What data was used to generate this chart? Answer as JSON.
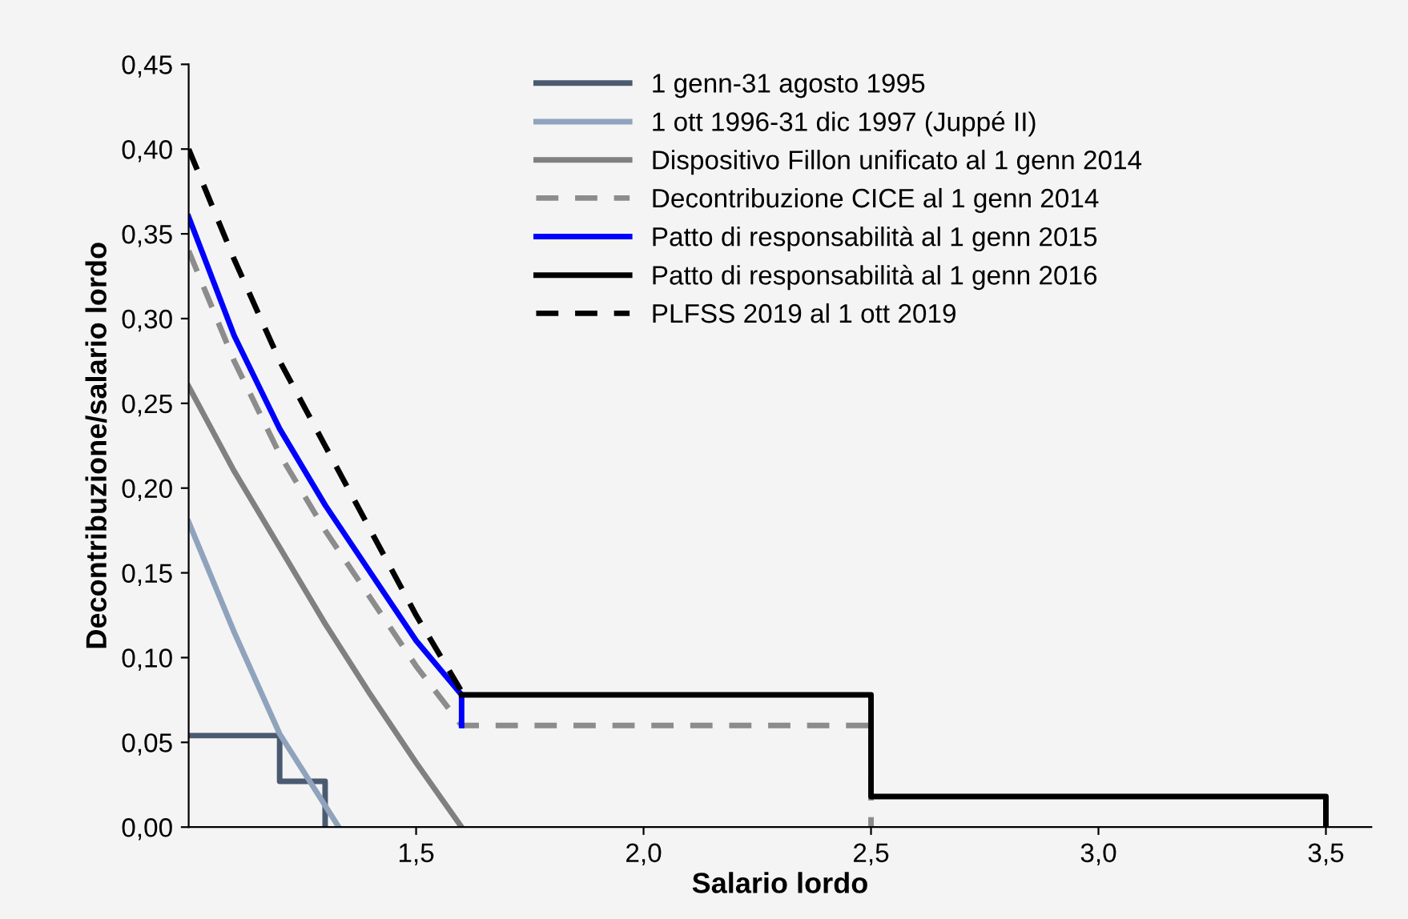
{
  "chart_data": {
    "type": "line",
    "xlabel": "Salario lordo",
    "ylabel": "Decontribuzione/salario lordo",
    "xlim": [
      1,
      3.6
    ],
    "xticks": [
      {
        "value": 1.5,
        "label": "1,5"
      },
      {
        "value": 2,
        "label": "2,0"
      },
      {
        "value": 2.5,
        "label": "2,5"
      },
      {
        "value": 3,
        "label": "3,0"
      },
      {
        "value": 3.5,
        "label": "3,5"
      }
    ],
    "ylim": [
      0,
      0.45
    ],
    "yticks": [
      {
        "value": 0,
        "label": "0,00"
      },
      {
        "value": 0.05,
        "label": "0,05"
      },
      {
        "value": 0.1,
        "label": "0,10"
      },
      {
        "value": 0.15,
        "label": "0,15"
      },
      {
        "value": 0.2,
        "label": "0,20"
      },
      {
        "value": 0.25,
        "label": "0,25"
      },
      {
        "value": 0.3,
        "label": "0,30"
      },
      {
        "value": 0.35,
        "label": "0,35"
      },
      {
        "value": 0.4,
        "label": "0,40"
      },
      {
        "value": 0.45,
        "label": "0,45"
      }
    ],
    "grid": false,
    "legend": "top",
    "marker": "none",
    "series": [
      {
        "name": "1 genn-31 agosto 1995",
        "color": "#4a5a70",
        "line_style": "solid",
        "x": [
          1,
          1.2,
          1.2,
          1.3,
          1.3
        ],
        "values": [
          0.054,
          0.054,
          0.027,
          0.027,
          0
        ]
      },
      {
        "name": "1 ott 1996-31 dic 1997 (Juppé II)",
        "color": "#8fa3bd",
        "line_style": "solid",
        "x": [
          1,
          1.1,
          1.2,
          1.33
        ],
        "values": [
          0.18,
          0.115,
          0.055,
          0
        ]
      },
      {
        "name": "Dispositivo Fillon unificato al 1 genn 2014",
        "color": "#808080",
        "line_style": "solid",
        "x": [
          1,
          1.1,
          1.2,
          1.3,
          1.4,
          1.5,
          1.6
        ],
        "values": [
          0.26,
          0.21,
          0.165,
          0.12,
          0.078,
          0.038,
          0
        ]
      },
      {
        "name": "Decontribuzione CICE al 1 genn 2014",
        "color": "#8c8c8c",
        "line_style": "dashed",
        "x": [
          1,
          1.1,
          1.2,
          1.3,
          1.4,
          1.5,
          1.6,
          2.5,
          2.5
        ],
        "values": [
          0.34,
          0.275,
          0.22,
          0.175,
          0.135,
          0.095,
          0.06,
          0.06,
          0
        ]
      },
      {
        "name": "Patto di responsabilità al 1 genn 2015",
        "color": "#0000ff",
        "line_style": "solid",
        "x": [
          1,
          1.1,
          1.2,
          1.3,
          1.4,
          1.5,
          1.6,
          1.6
        ],
        "values": [
          0.36,
          0.29,
          0.235,
          0.19,
          0.15,
          0.11,
          0.078,
          0.06
        ]
      },
      {
        "name": "Patto di responsabilità al 1 genn 2016",
        "color": "#000000",
        "line_style": "solid",
        "x": [
          1.6,
          2.5,
          2.5,
          3.5,
          3.5
        ],
        "values": [
          0.078,
          0.078,
          0.018,
          0.018,
          0
        ]
      },
      {
        "name": "PLFSS 2019 al 1 ott 2019",
        "color": "#000000",
        "line_style": "dashed",
        "x": [
          1,
          1.1,
          1.2,
          1.3,
          1.4,
          1.5,
          1.6
        ],
        "values": [
          0.4,
          0.335,
          0.275,
          0.225,
          0.175,
          0.125,
          0.08
        ]
      }
    ]
  }
}
